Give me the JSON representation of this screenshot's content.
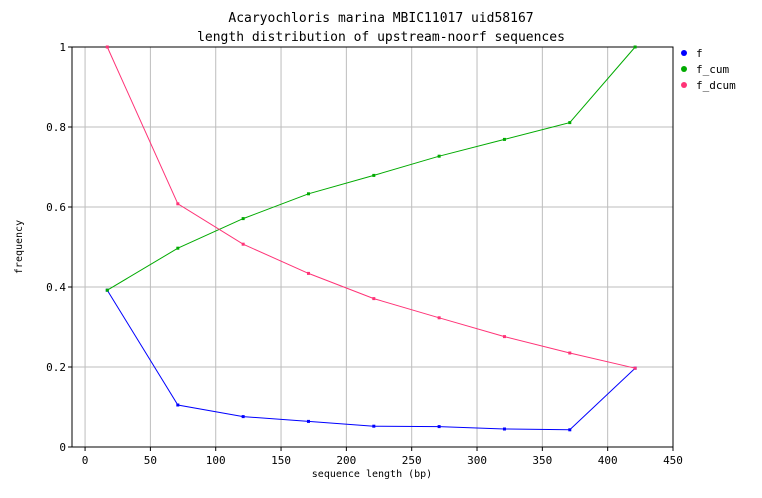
{
  "chart_data": {
    "type": "line",
    "title": "Acaryochloris marina MBIC11017 uid58167",
    "subtitle": "length distribution of upstream-noorf sequences",
    "xlabel": "sequence length (bp)",
    "ylabel": "frequency",
    "xlim": [
      -10,
      450
    ],
    "ylim": [
      0,
      1
    ],
    "xticks": [
      0,
      50,
      100,
      150,
      200,
      250,
      300,
      350,
      400,
      450
    ],
    "yticks": [
      0,
      0.2,
      0.4,
      0.6,
      0.8,
      1
    ],
    "x": [
      17,
      71,
      121,
      171,
      221,
      271,
      321,
      371,
      421
    ],
    "series": [
      {
        "name": "f",
        "color": "#0000ff",
        "values": [
          0.392,
          0.105,
          0.076,
          0.064,
          0.052,
          0.051,
          0.045,
          0.043,
          0.197
        ]
      },
      {
        "name": "f_cum",
        "color": "#00aa00",
        "values": [
          0.392,
          0.497,
          0.571,
          0.633,
          0.679,
          0.727,
          0.769,
          0.811,
          1.0
        ]
      },
      {
        "name": "f_dcum",
        "color": "#ff3377",
        "values": [
          1.0,
          0.608,
          0.507,
          0.434,
          0.371,
          0.323,
          0.276,
          0.235,
          0.197
        ]
      }
    ],
    "grid": true,
    "legend_position": "top-right"
  }
}
